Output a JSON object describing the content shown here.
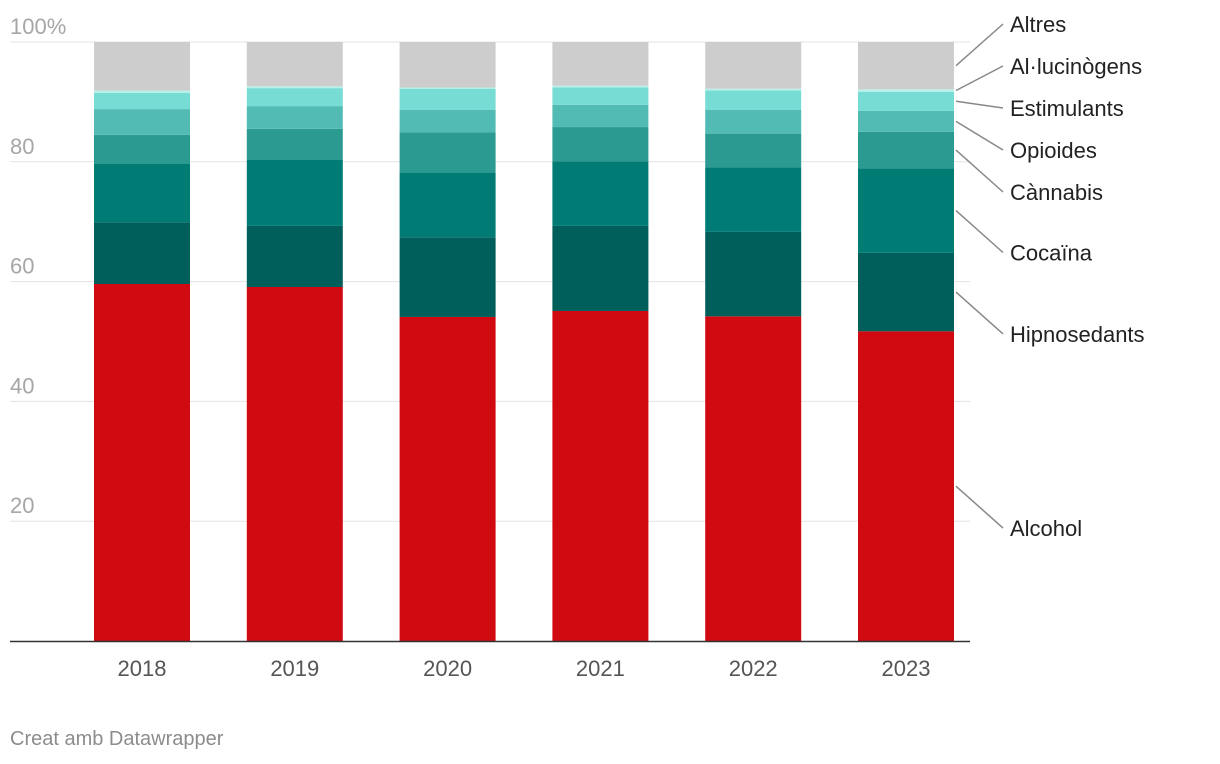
{
  "chart_data": {
    "type": "bar",
    "stacked": true,
    "categories": [
      "2018",
      "2019",
      "2020",
      "2021",
      "2022",
      "2023"
    ],
    "ylim": [
      0,
      100
    ],
    "yticks": [
      20,
      40,
      60,
      80,
      100
    ],
    "ytick_labels": [
      "20",
      "40",
      "60",
      "80",
      "100%"
    ],
    "grid": true,
    "legend_placement": "right, labels aligned to segments",
    "series": [
      {
        "name": "Alcohol",
        "color": "#d10a11",
        "values": [
          59.6,
          59.1,
          54.1,
          55.1,
          54.2,
          51.7
        ]
      },
      {
        "name": "Hipnosedants",
        "color": "#005e5b",
        "values": [
          10.3,
          10.2,
          13.3,
          14.2,
          14.1,
          13.1
        ]
      },
      {
        "name": "Cocaïna",
        "color": "#007c74",
        "values": [
          9.8,
          11.0,
          10.8,
          10.8,
          10.8,
          14.1
        ]
      },
      {
        "name": "Cànnabis",
        "color": "#2b9b92",
        "values": [
          4.8,
          5.2,
          6.7,
          5.7,
          5.6,
          6.1
        ]
      },
      {
        "name": "Opioides",
        "color": "#52bcb4",
        "values": [
          4.3,
          3.8,
          3.8,
          3.7,
          4.0,
          3.5
        ]
      },
      {
        "name": "Estimulants",
        "color": "#76dcd4",
        "values": [
          2.7,
          3.0,
          3.5,
          2.9,
          3.2,
          3.2
        ]
      },
      {
        "name": "Al·lucinògens",
        "color": "#b8f0ea",
        "values": [
          0.4,
          0.3,
          0.2,
          0.3,
          0.3,
          0.4
        ]
      },
      {
        "name": "Altres",
        "color": "#cdcdcd",
        "values": [
          8.1,
          7.4,
          7.6,
          7.3,
          7.8,
          7.9
        ]
      }
    ]
  },
  "footer": {
    "credit": "Creat amb Datawrapper"
  }
}
